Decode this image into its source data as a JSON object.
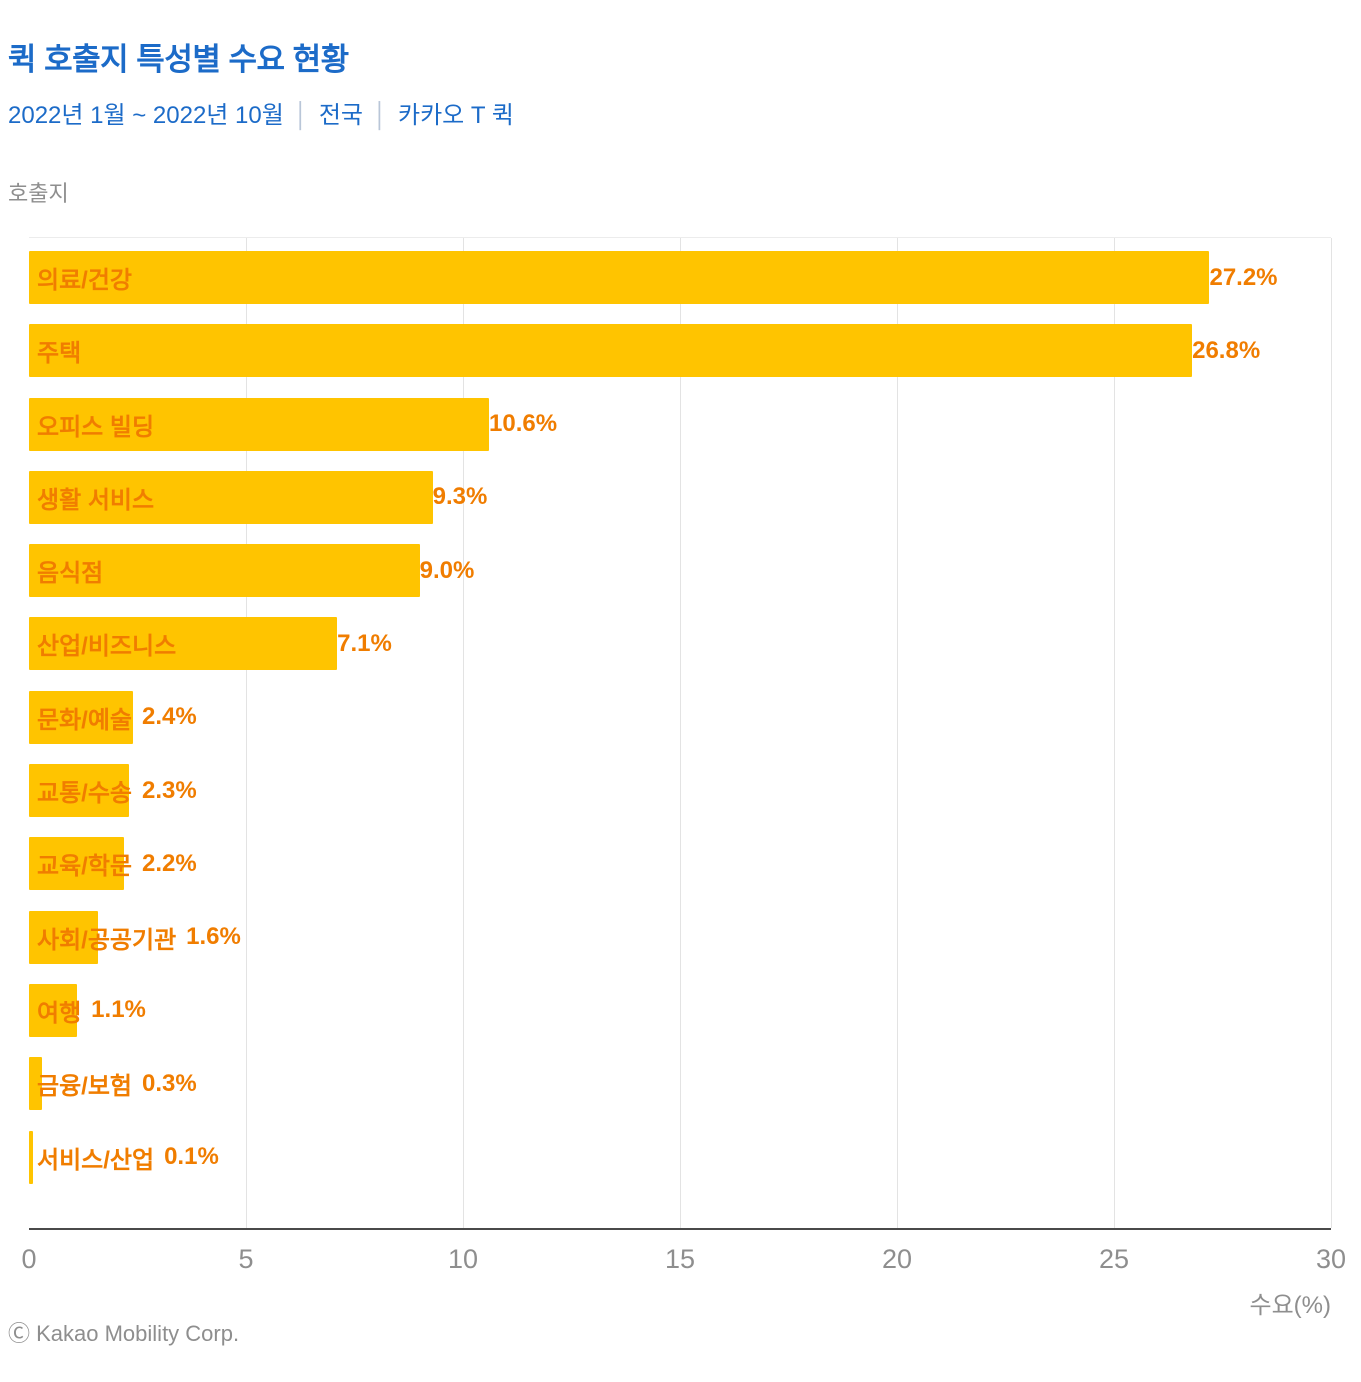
{
  "header": {
    "title": "퀵 호출지 특성별 수요 현황",
    "subtitle_period": "2022년 1월 ~ 2022년 10월",
    "subtitle_region": "전국",
    "subtitle_service": "카카오 T 퀵",
    "separator": "│"
  },
  "axis_caption": "호출지",
  "footer": {
    "credit": "Ⓒ Kakao Mobility Corp."
  },
  "colors": {
    "bar": "#ffc400",
    "bar_text": "#f07d00",
    "title_blue": "#1c6bc8",
    "axis_gray": "#8e8e8e"
  },
  "chart_data": {
    "type": "bar",
    "orientation": "horizontal",
    "title": "퀵 호출지 특성별 수요 현황",
    "xlabel": "수요(%)",
    "ylabel": "호출지",
    "xlim": [
      0,
      30
    ],
    "x_ticks": [
      0,
      5,
      10,
      15,
      20,
      25,
      30
    ],
    "grid": "vertical",
    "categories": [
      "의료/건강",
      "주택",
      "오피스 빌딩",
      "생활 서비스",
      "음식점",
      "산업/비즈니스",
      "문화/예술",
      "교통/수송",
      "교육/학문",
      "사회/공공기관",
      "여행",
      "금융/보험",
      "서비스/산업"
    ],
    "values": [
      27.2,
      26.8,
      10.6,
      9.3,
      9.0,
      7.1,
      2.4,
      2.3,
      2.2,
      1.6,
      1.1,
      0.3,
      0.1
    ],
    "value_labels": [
      "27.2%",
      "26.8%",
      "10.6%",
      "9.3%",
      "9.0%",
      "7.1%",
      "2.4%",
      "2.3%",
      "2.2%",
      "1.6%",
      "1.1%",
      "0.3%",
      "0.1%"
    ]
  }
}
